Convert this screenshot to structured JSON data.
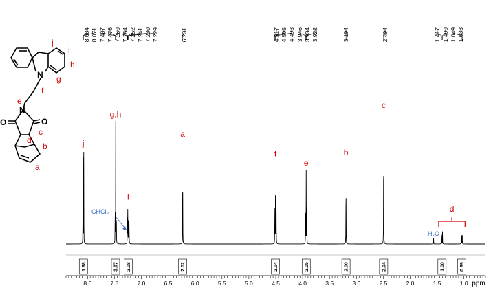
{
  "chart_data": {
    "type": "line",
    "title": "",
    "xlabel": "ppm",
    "xlim": [
      8.4,
      0.6
    ],
    "x_ticks": [
      {
        "v": 8.0,
        "label": "8.0"
      },
      {
        "v": 7.5,
        "label": "7.5"
      },
      {
        "v": 7.0,
        "label": "7.0"
      },
      {
        "v": 6.5,
        "label": "6.5"
      },
      {
        "v": 6.0,
        "label": "6.0"
      },
      {
        "v": 5.5,
        "label": "5.5"
      },
      {
        "v": 5.0,
        "label": "5.0"
      },
      {
        "v": 4.5,
        "label": "4.5"
      },
      {
        "v": 4.0,
        "label": "4.0"
      },
      {
        "v": 3.5,
        "label": "3.5"
      },
      {
        "v": 3.0,
        "label": "3.0"
      },
      {
        "v": 2.5,
        "label": "2.5"
      },
      {
        "v": 2.0,
        "label": "2.0"
      },
      {
        "v": 1.5,
        "label": "1.5"
      },
      {
        "v": 1.0,
        "label": "1.0"
      }
    ],
    "peak_labels": [
      {
        "group": 0,
        "labels": [
          "8.084",
          "8.071"
        ]
      },
      {
        "group": 1,
        "labels": [
          "7.487",
          "7.476",
          "7.260",
          "7.254",
          "7.252",
          "7.241",
          "7.230",
          "7.229"
        ]
      },
      {
        "group": 2,
        "labels": [
          "6.231"
        ]
      },
      {
        "group": 3,
        "labels": [
          "4.517",
          "4.505",
          "4.493"
        ]
      },
      {
        "group": 4,
        "labels": [
          "3.946",
          "3.934",
          "3.922"
        ]
      },
      {
        "group": 5,
        "labels": [
          "3.194"
        ]
      },
      {
        "group": 6,
        "labels": [
          "2.494"
        ]
      },
      {
        "group": 7,
        "labels": [
          "1.417",
          "1.400"
        ]
      },
      {
        "group": 8,
        "labels": [
          "1.049",
          "1.033"
        ]
      }
    ],
    "peaks": [
      {
        "ppm": 8.084,
        "height": 0.71
      },
      {
        "ppm": 8.071,
        "height": 0.71
      },
      {
        "ppm": 7.487,
        "height": 0.35
      },
      {
        "ppm": 7.476,
        "height": 0.93
      },
      {
        "ppm": 7.465,
        "height": 0.3
      },
      {
        "ppm": 7.26,
        "height": 0.3
      },
      {
        "ppm": 7.252,
        "height": 0.26
      },
      {
        "ppm": 7.241,
        "height": 0.3
      },
      {
        "ppm": 7.229,
        "height": 0.26
      },
      {
        "ppm": 6.231,
        "height": 0.78
      },
      {
        "ppm": 4.517,
        "height": 0.36
      },
      {
        "ppm": 4.505,
        "height": 0.63
      },
      {
        "ppm": 4.493,
        "height": 0.36
      },
      {
        "ppm": 3.946,
        "height": 0.31
      },
      {
        "ppm": 3.934,
        "height": 0.56
      },
      {
        "ppm": 3.922,
        "height": 0.31
      },
      {
        "ppm": 3.194,
        "height": 0.64
      },
      {
        "ppm": 2.494,
        "height": 1.0
      },
      {
        "ppm": 1.565,
        "height": 0.05
      },
      {
        "ppm": 1.417,
        "height": 0.12
      },
      {
        "ppm": 1.4,
        "height": 0.12
      },
      {
        "ppm": 1.049,
        "height": 0.12
      },
      {
        "ppm": 1.033,
        "height": 0.12
      }
    ],
    "assignments": [
      {
        "label": "j",
        "ppm": 8.077,
        "height": 0.71
      },
      {
        "label": "g,h",
        "ppm": 7.48,
        "height": 0.93
      },
      {
        "label": "i",
        "ppm": 7.245,
        "height": 0.3
      },
      {
        "label": "a",
        "ppm": 6.231,
        "height": 0.78
      },
      {
        "label": "f",
        "ppm": 4.505,
        "height": 0.63
      },
      {
        "label": "e",
        "ppm": 3.934,
        "height": 0.56
      },
      {
        "label": "b",
        "ppm": 3.194,
        "height": 0.64
      },
      {
        "label": "c",
        "ppm": 2.494,
        "height": 1.0
      }
    ],
    "d_label": "d",
    "d_range": [
      1.47,
      0.98
    ],
    "annotations": {
      "solvent": "CHCl₃",
      "water": "H₂O"
    },
    "integrals": [
      {
        "ppm": 8.077,
        "value": "1.98"
      },
      {
        "ppm": 7.48,
        "value": "3.97"
      },
      {
        "ppm": 7.245,
        "value": "2.08"
      },
      {
        "ppm": 6.231,
        "value": "2.02"
      },
      {
        "ppm": 4.505,
        "value": "2.04"
      },
      {
        "ppm": 3.934,
        "value": "2.05"
      },
      {
        "ppm": 3.194,
        "value": "2.00"
      },
      {
        "ppm": 2.494,
        "value": "2.04"
      },
      {
        "ppm": 1.408,
        "value": "1.00"
      },
      {
        "ppm": 1.041,
        "value": "0.99"
      }
    ]
  },
  "structure": {
    "atoms": {
      "N": "N",
      "O": "O"
    },
    "labels": {
      "j": "j",
      "i": "i",
      "h": "h",
      "g": "g",
      "f": "f",
      "e": "e",
      "c": "c",
      "d": "d",
      "b": "b",
      "a": "a"
    }
  }
}
